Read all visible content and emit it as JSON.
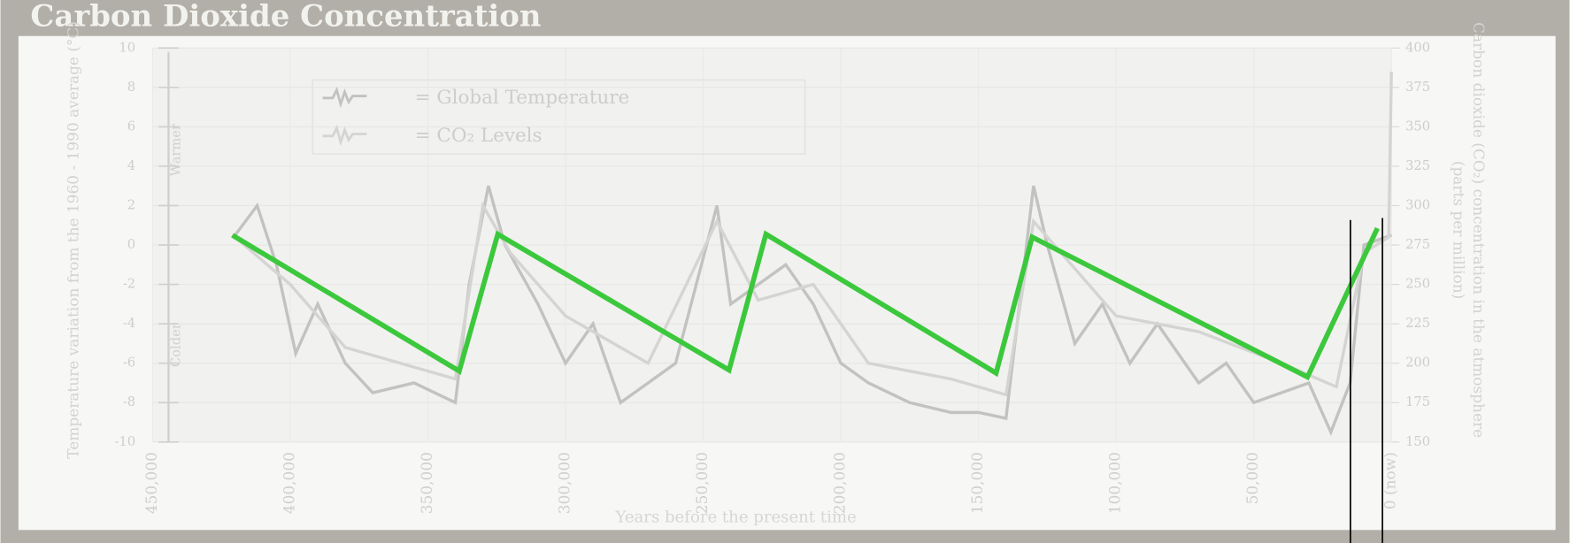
{
  "chart_data": {
    "type": "line",
    "title": "Carbon Dioxide Concentration",
    "ylabel": "Temperature variation from the 1960 - 1990 average (°C)",
    "y2label": [
      "Carbon dioxide (CO₂) concentration in the atmosphere",
      "(parts per million)"
    ],
    "xlabel": "Years before the present time",
    "annotations": {
      "warmer": "Warmer",
      "colder": "Colder"
    },
    "xlim": [
      450000,
      0
    ],
    "xticks": [
      {
        "value": 450000,
        "label": "450,000"
      },
      {
        "value": 400000,
        "label": "400,000"
      },
      {
        "value": 350000,
        "label": "350,000"
      },
      {
        "value": 300000,
        "label": "300,000"
      },
      {
        "value": 250000,
        "label": "250,000"
      },
      {
        "value": 200000,
        "label": "200,000"
      },
      {
        "value": 150000,
        "label": "150,000"
      },
      {
        "value": 100000,
        "label": "100,000"
      },
      {
        "value": 50000,
        "label": "50,000"
      },
      {
        "value": 0,
        "label": "0 (now)"
      }
    ],
    "ylim": [
      -10,
      10
    ],
    "yticks": [
      -10,
      -8,
      -6,
      -4,
      -2,
      0,
      2,
      4,
      6,
      8,
      10
    ],
    "y2lim": [
      150,
      400
    ],
    "y2ticks": [
      150,
      175,
      200,
      225,
      250,
      275,
      300,
      325,
      350,
      375,
      400
    ],
    "grid": true,
    "series": [
      {
        "name": "= Global Temperature",
        "color": "#c2c2c0",
        "x": [
          420000,
          412000,
          405000,
          398000,
          390000,
          380000,
          370000,
          355000,
          340000,
          335000,
          328000,
          322000,
          310000,
          300000,
          290000,
          280000,
          270000,
          260000,
          245000,
          240000,
          230000,
          220000,
          210000,
          200000,
          190000,
          175000,
          160000,
          150000,
          140000,
          130000,
          125000,
          115000,
          105000,
          95000,
          85000,
          70000,
          60000,
          50000,
          30000,
          22000,
          15000,
          10000,
          0
        ],
        "values": [
          0.5,
          2,
          -1,
          -5.5,
          -3,
          -6,
          -7.5,
          -7,
          -8,
          -2,
          3,
          0,
          -3,
          -6,
          -4,
          -8,
          -7,
          -6,
          2,
          -3,
          -2,
          -1,
          -3,
          -6,
          -7,
          -8,
          -8.5,
          -8.5,
          -8.8,
          3,
          0,
          -5,
          -3,
          -6,
          -4,
          -7,
          -6,
          -8,
          -7,
          -9.5,
          -7,
          0,
          0.5
        ]
      },
      {
        "name": "= CO₂ Levels",
        "color": "#d4d4d2",
        "axis": "y2",
        "x": [
          420000,
          400000,
          380000,
          340000,
          330000,
          320000,
          300000,
          270000,
          245000,
          230000,
          210000,
          190000,
          160000,
          140000,
          130000,
          115000,
          100000,
          70000,
          40000,
          20000,
          10000,
          1000,
          0
        ],
        "values": [
          280,
          250,
          210,
          190,
          300,
          270,
          230,
          200,
          290,
          240,
          250,
          200,
          190,
          180,
          290,
          260,
          230,
          220,
          200,
          185,
          270,
          280,
          385
        ]
      },
      {
        "color": "#3cc83c",
        "x": [
          421000,
          338600,
          324600,
          240600,
          227200,
          143600,
          130500,
          30500,
          5100
        ],
        "values": [
          0.5,
          -6.4,
          0.55,
          -6.35,
          0.55,
          -6.5,
          0.4,
          -6.7,
          0.85
        ]
      }
    ]
  }
}
